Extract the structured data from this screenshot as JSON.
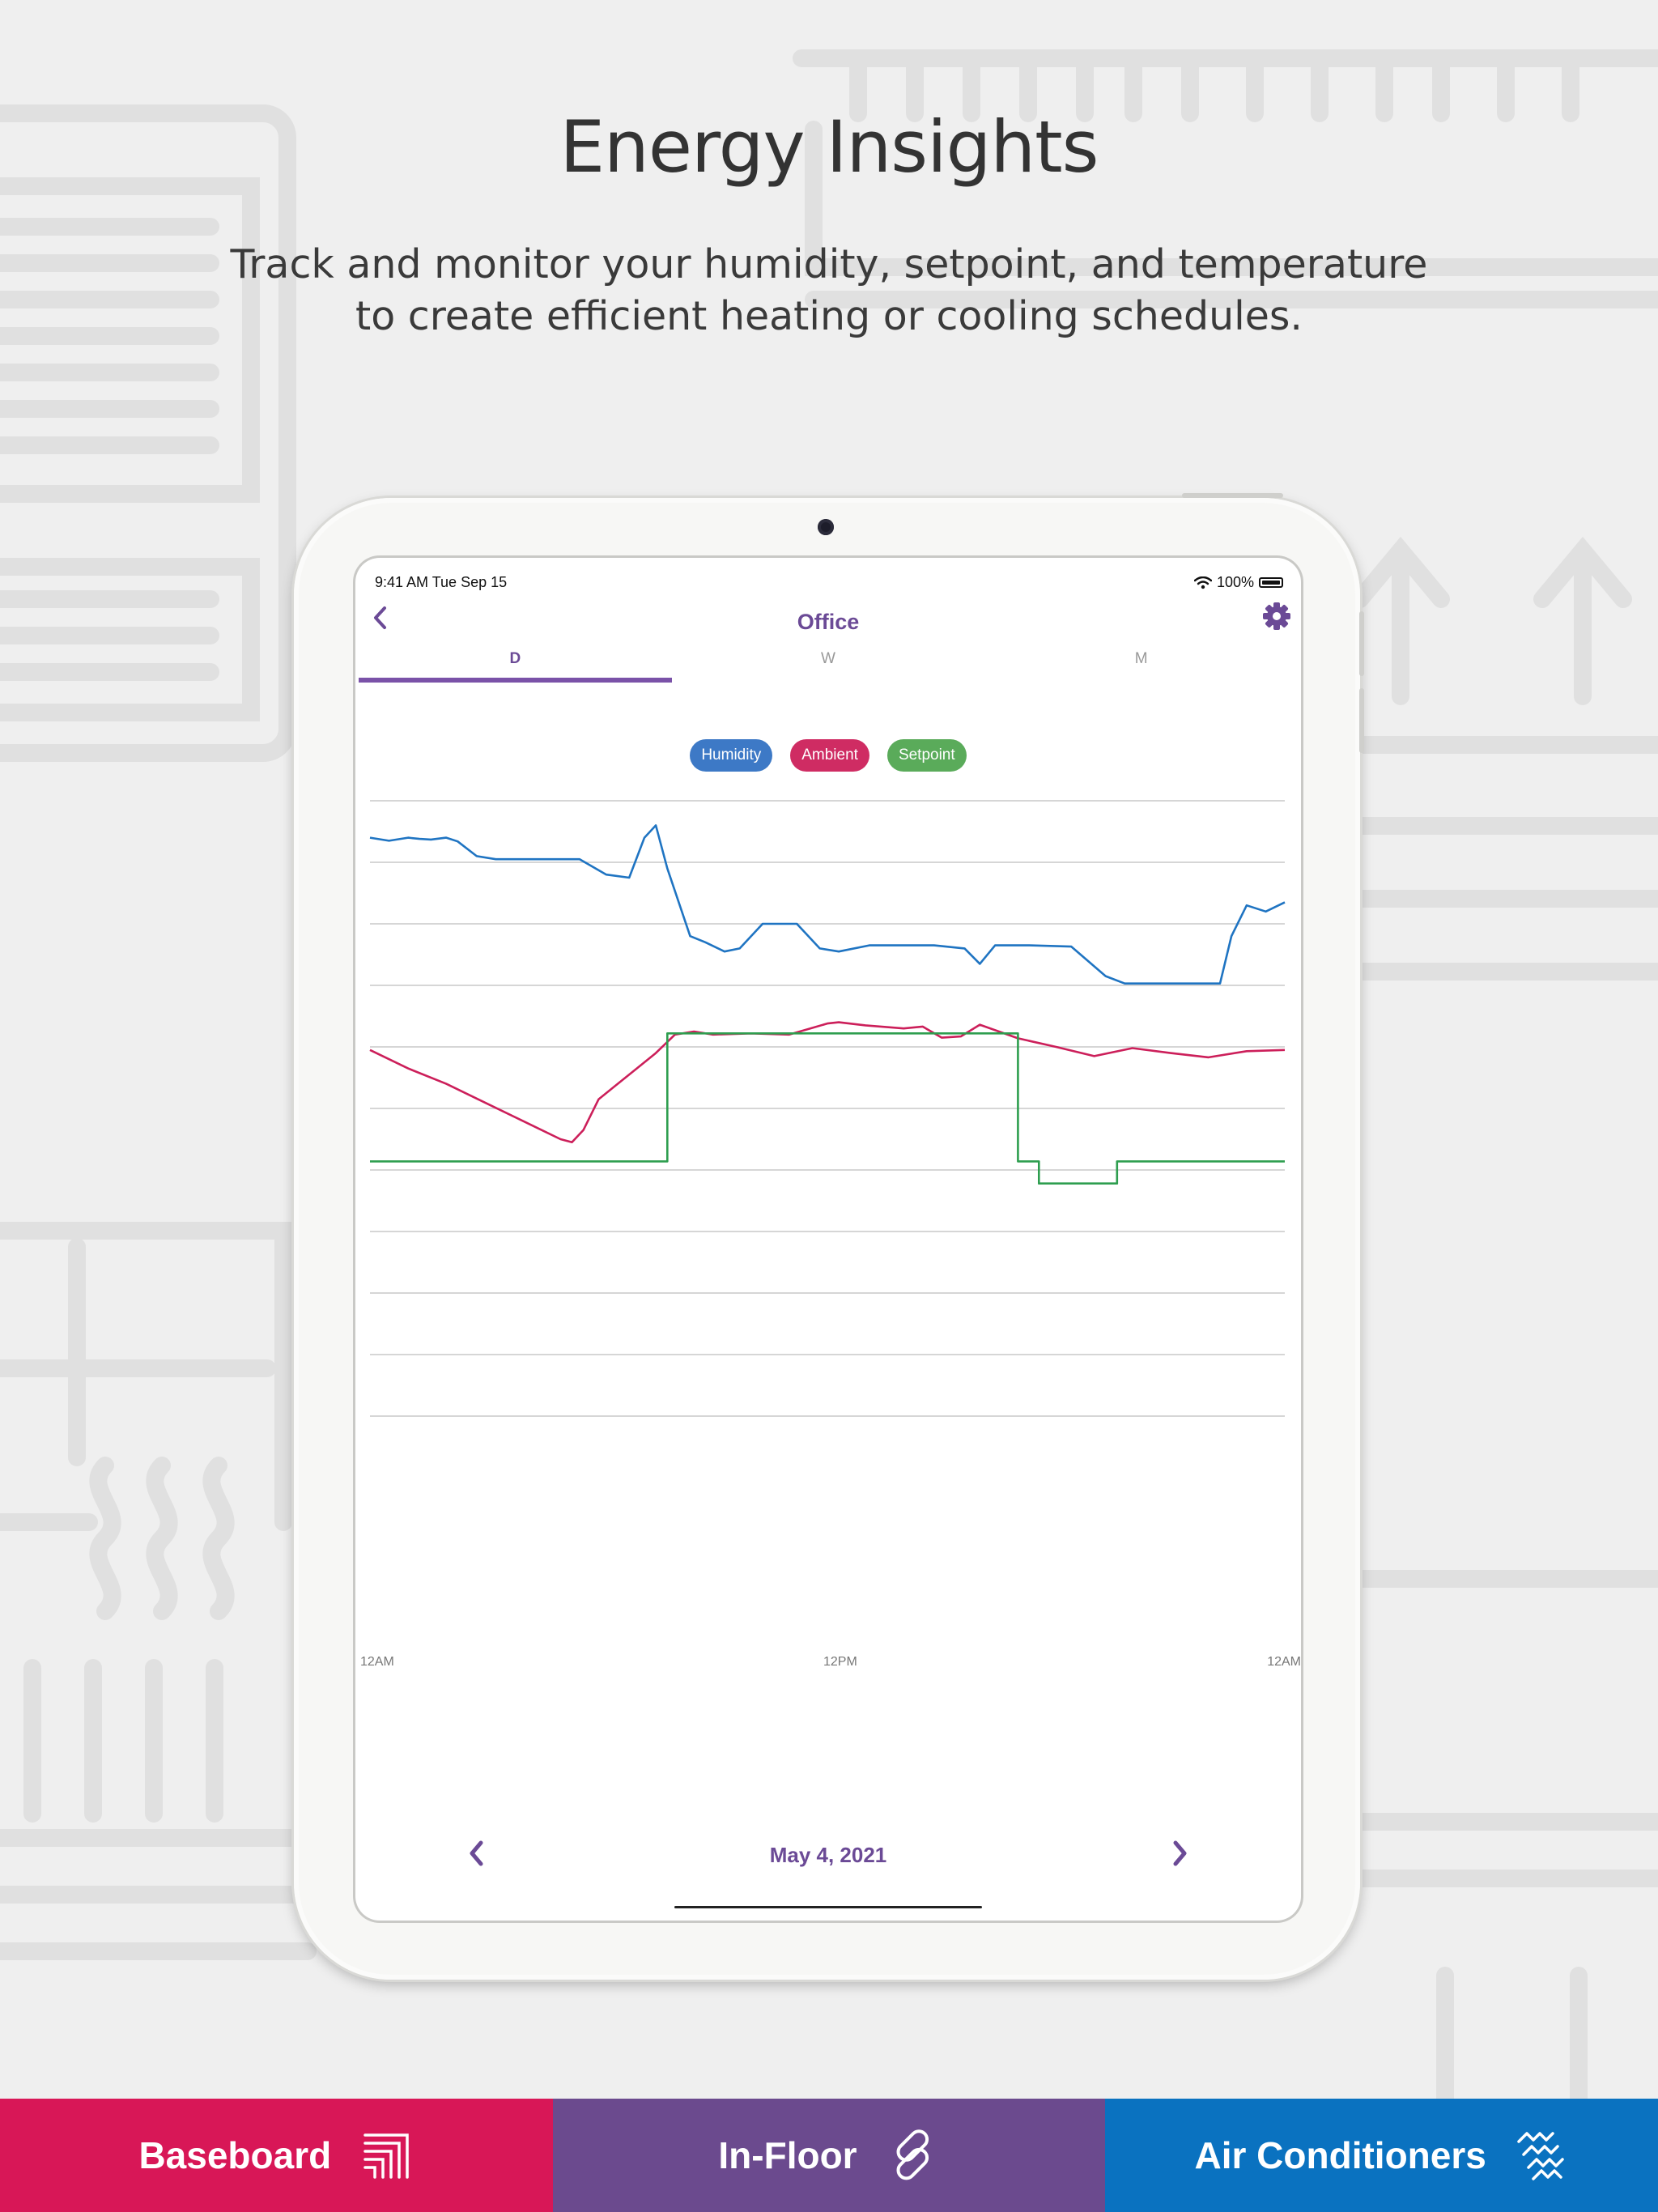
{
  "headline": "Energy Insights",
  "subhead_line1": "Track and monitor your humidity, setpoint, and temperature",
  "subhead_line2": "to create efficient heating or cooling schedules.",
  "device": {
    "status_time": "9:41 AM   Tue Sep 15",
    "battery": "100%",
    "nav_title": "Office",
    "icons": {
      "back": "chevron-left-icon",
      "settings": "gear-icon",
      "wifi": "wifi-icon",
      "battery": "battery-icon"
    },
    "tabs": [
      {
        "label": "D",
        "active": true
      },
      {
        "label": "W",
        "active": false
      },
      {
        "label": "M",
        "active": false
      }
    ],
    "legend": [
      {
        "label": "Humidity",
        "color": "#3d79c6"
      },
      {
        "label": "Ambient",
        "color": "#cf2c63"
      },
      {
        "label": "Setpoint",
        "color": "#5aab5a"
      }
    ],
    "date_label": "May 4, 2021"
  },
  "chart_data": {
    "type": "line",
    "x_tick_labels": [
      "12AM",
      "12PM",
      "12AM"
    ],
    "x_range": [
      0,
      24
    ],
    "y_range": [
      0,
      100
    ],
    "gridlines": 11,
    "y_ticks_shown": false,
    "series": [
      {
        "name": "Humidity",
        "color": "#1f74c2",
        "x": [
          0,
          0.5,
          1,
          1.3,
          1.6,
          2,
          2.3,
          2.8,
          3.3,
          4,
          5,
          5.5,
          6.2,
          6.8,
          7.2,
          7.5,
          7.8,
          8.4,
          8.8,
          9.3,
          9.7,
          10.3,
          11.2,
          11.8,
          12.3,
          13.1,
          14,
          14.8,
          15.6,
          16,
          16.4,
          17.3,
          18.4,
          19.3,
          19.8,
          20.4,
          21.2,
          22.3,
          22.6,
          23,
          23.5,
          24
        ],
        "y": [
          94,
          93.5,
          94,
          93.8,
          93.7,
          94,
          93.4,
          91,
          90.5,
          90.5,
          90.5,
          90.5,
          88,
          87.5,
          94,
          96,
          89,
          78,
          77,
          75.5,
          76,
          80,
          80,
          76,
          75.5,
          76.5,
          76.5,
          76.5,
          76,
          73.5,
          76.5,
          76.5,
          76.3,
          71.5,
          70.3,
          70.3,
          70.3,
          70.3,
          78,
          83,
          82,
          83.5
        ]
      },
      {
        "name": "Ambient",
        "color": "#cc1f5a",
        "x": [
          0,
          1,
          2,
          3,
          4,
          5,
          5.3,
          5.6,
          6,
          6.5,
          7,
          7.5,
          8,
          8.5,
          9,
          10,
          11,
          12,
          12.3,
          13,
          14,
          14.5,
          15,
          15.5,
          16,
          16.5,
          17,
          18,
          19,
          20,
          21,
          22,
          23,
          24
        ],
        "y": [
          59.5,
          56.5,
          54,
          51,
          48,
          45,
          44.5,
          46.5,
          51.5,
          54,
          56.5,
          59,
          62,
          62.5,
          62,
          62.2,
          62,
          63.8,
          64,
          63.5,
          63,
          63.3,
          61.5,
          61.7,
          63.6,
          62.5,
          61.4,
          60,
          58.5,
          59.8,
          59,
          58.3,
          59.3,
          59.5
        ]
      },
      {
        "name": "Setpoint",
        "color": "#2e9e4f",
        "x": [
          0,
          7.8,
          7.8,
          17,
          17,
          17.55,
          17.55,
          19.6,
          19.6,
          24
        ],
        "y": [
          41.4,
          41.4,
          62.2,
          62.2,
          41.4,
          41.4,
          37.8,
          37.8,
          41.4,
          41.4
        ]
      }
    ]
  },
  "bottom_bar": [
    {
      "label": "Baseboard",
      "color": "#d81757",
      "icon": "baseboard-icon"
    },
    {
      "label": "In-Floor",
      "color": "#6b4a8e",
      "icon": "in-floor-icon"
    },
    {
      "label": "Air Conditioners",
      "color": "#0a72c0",
      "icon": "air-conditioner-icon"
    }
  ]
}
